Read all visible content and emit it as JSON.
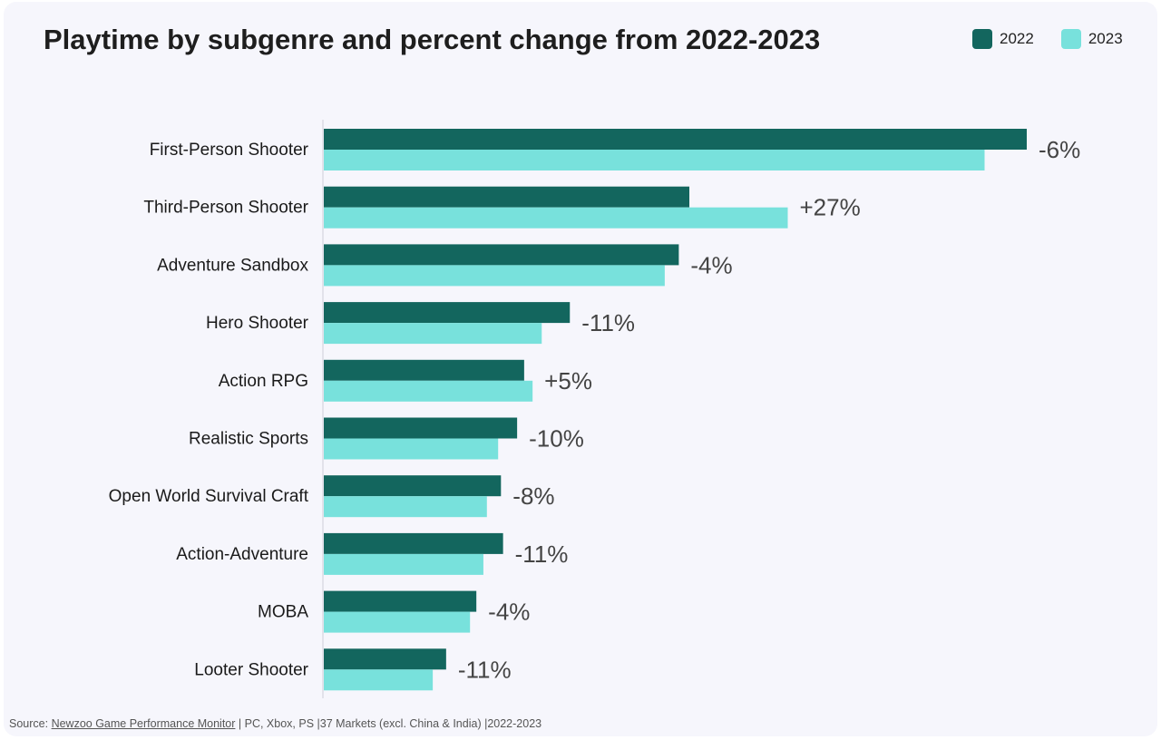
{
  "title": "Playtime by subgenre and percent change from 2022-2023",
  "legend": [
    {
      "label": "2022",
      "color": "#13665e"
    },
    {
      "label": "2023",
      "color": "#78e1dc"
    }
  ],
  "source": {
    "prefix": "Source: ",
    "link": "Newzoo Game Performance Monitor",
    "suffix": " | PC, Xbox, PS |37 Markets (excl. China & India) |2022-2023"
  },
  "chart_data": {
    "type": "bar",
    "orientation": "horizontal",
    "categories": [
      "First-Person Shooter",
      "Third-Person Shooter",
      "Adventure Sandbox",
      "Hero Shooter",
      "Action RPG",
      "Realistic Sports",
      "Open World Survival Craft",
      "Action-Adventure",
      "MOBA",
      "Looter Shooter"
    ],
    "series": [
      {
        "name": "2022",
        "color": "#13665e",
        "values": [
          100,
          52,
          50.5,
          35,
          28.5,
          27.5,
          25.2,
          25.5,
          21.7,
          17.4
        ]
      },
      {
        "name": "2023",
        "color": "#78e1dc",
        "values": [
          94,
          66,
          48.5,
          31,
          29.7,
          24.8,
          23.2,
          22.7,
          20.8,
          15.5
        ]
      }
    ],
    "annotations": [
      "-6%",
      "+27%",
      "-4%",
      "-11%",
      "+5%",
      "-10%",
      "-8%",
      "-11%",
      "-4%",
      "-11%"
    ],
    "xlim": [
      0,
      100
    ],
    "grid": false,
    "legend_position": "top-right"
  }
}
